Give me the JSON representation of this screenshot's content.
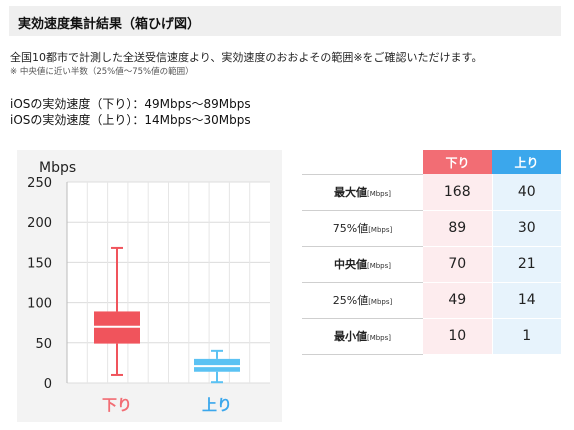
{
  "header": {
    "title": "実効速度集計結果（箱ひげ図）"
  },
  "intro": {
    "text": "全国10都市で計測した全送受信速度より、実効速度のおおよその範囲※をご確認いただけます。",
    "note": "※ 中央値に近い半数（25%値〜75%値の範囲）"
  },
  "summary": {
    "down": "iOSの実効速度（下り）：49Mbps〜89Mbps",
    "up": "iOSの実効速度（上り）：14Mbps〜30Mbps"
  },
  "colors": {
    "down": "#f26d74",
    "up": "#3ba7ec",
    "down_box": "#f0545c",
    "up_box": "#5bc2f3"
  },
  "chart_data": {
    "type": "boxplot",
    "ylabel": "Mbps",
    "ylim": [
      0,
      250
    ],
    "yticks": [
      "0",
      "50",
      "100",
      "150",
      "200",
      "250"
    ],
    "categories": [
      "下り",
      "上り"
    ],
    "series": [
      {
        "name": "下り",
        "min": 10,
        "q1": 49,
        "median": 70,
        "q3": 89,
        "max": 168
      },
      {
        "name": "上り",
        "min": 1,
        "q1": 14,
        "median": 21,
        "q3": 30,
        "max": 40
      }
    ]
  },
  "table": {
    "headers": [
      "下り",
      "上り"
    ],
    "unit": "[Mbps]",
    "rows": [
      {
        "label": "最大値",
        "bold": true,
        "down": "168",
        "up": "40"
      },
      {
        "label": "75%値",
        "bold": false,
        "down": "89",
        "up": "30"
      },
      {
        "label": "中央値",
        "bold": true,
        "down": "70",
        "up": "21"
      },
      {
        "label": "25%値",
        "bold": false,
        "down": "49",
        "up": "14"
      },
      {
        "label": "最小値",
        "bold": true,
        "down": "10",
        "up": "1"
      }
    ]
  }
}
